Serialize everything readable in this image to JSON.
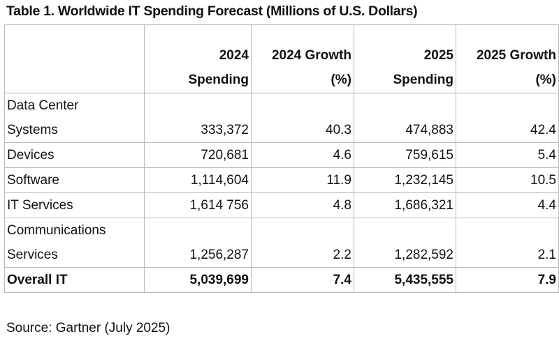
{
  "title": "Table 1. Worldwide IT Spending Forecast (Millions of U.S. Dollars)",
  "headers": {
    "segment": "",
    "spend_2024": "2024 Spending",
    "growth_2024": "2024 Growth (%)",
    "spend_2025": "2025 Spending",
    "growth_2025": "2025 Growth (%)"
  },
  "rows": [
    {
      "segment": "Data Center Systems",
      "spend_2024": "333,372",
      "growth_2024": "40.3",
      "spend_2025": "474,883",
      "growth_2025": "42.4"
    },
    {
      "segment": "Devices",
      "spend_2024": "720,681",
      "growth_2024": "4.6",
      "spend_2025": "759,615",
      "growth_2025": "5.4"
    },
    {
      "segment": "Software",
      "spend_2024": "1,114,604",
      "growth_2024": "11.9",
      "spend_2025": "1,232,145",
      "growth_2025": "10.5"
    },
    {
      "segment": "IT Services",
      "spend_2024": "1,614 756",
      "growth_2024": "4.8",
      "spend_2025": "1,686,321",
      "growth_2025": "4.4"
    },
    {
      "segment": "Communications Services",
      "spend_2024": "1,256,287",
      "growth_2024": "2.2",
      "spend_2025": "1,282,592",
      "growth_2025": "2.1"
    }
  ],
  "total": {
    "segment": "Overall IT",
    "spend_2024": "5,039,699",
    "growth_2024": "7.4",
    "spend_2025": "5,435,555",
    "growth_2025": "7.9"
  },
  "source": "Source: Gartner (July 2025)"
}
